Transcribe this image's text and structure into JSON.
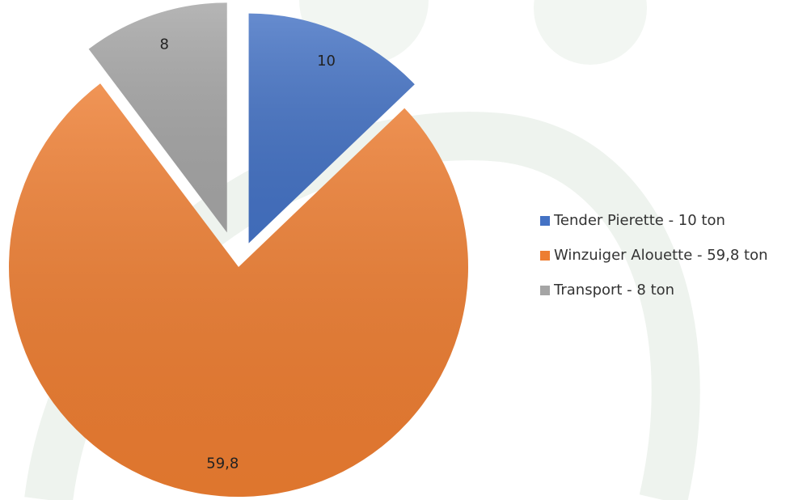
{
  "chart_data": {
    "type": "pie",
    "categories": [
      "Tender Pierette - 10 ton",
      "Winzuiger Alouette - 59,8 ton",
      "Transport - 8 ton"
    ],
    "values": [
      10,
      59.8,
      8
    ],
    "value_labels": [
      "10",
      "59,8",
      "8"
    ],
    "colors": [
      "#4472c4",
      "#ed7d31",
      "#a5a5a5"
    ],
    "legend": "right"
  }
}
